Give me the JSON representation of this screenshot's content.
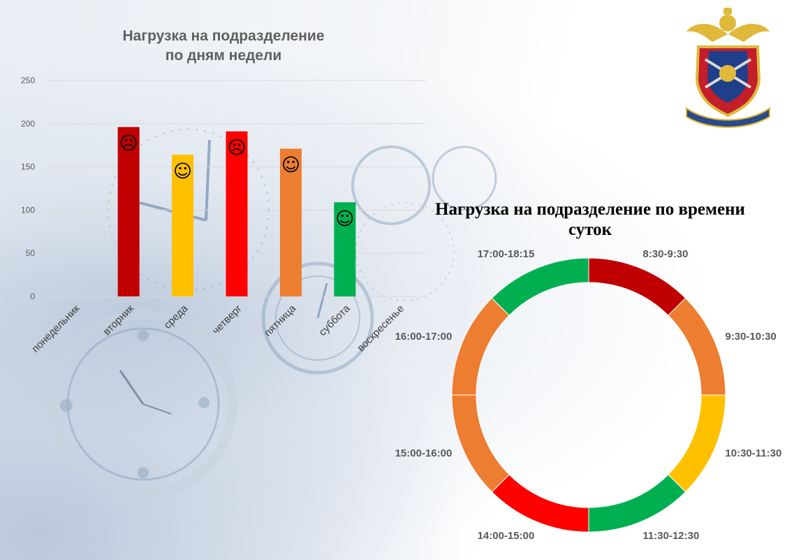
{
  "chart_data": [
    {
      "type": "bar",
      "title_lines": [
        "Нагрузка на подразделение",
        "по дням недели"
      ],
      "categories": [
        "понедельник",
        "вторник",
        "среда",
        "четверг",
        "пятница",
        "суббота",
        "воскресенье"
      ],
      "values": [
        0,
        196,
        164,
        191,
        171,
        109,
        0
      ],
      "colors": [
        "#c00000",
        "#c00000",
        "#ffc000",
        "#ff0000",
        "#ed7d31",
        "#00b050",
        "#00b050"
      ],
      "markers": [
        "",
        "☹",
        "☺",
        "☹",
        "☺",
        "☺",
        ""
      ],
      "yticks": [
        "0",
        "50",
        "100",
        "150",
        "200",
        "250"
      ],
      "ylim": [
        0,
        250
      ],
      "grid": true,
      "legend": false
    },
    {
      "type": "pie",
      "subtype": "donut",
      "title_lines": [
        "Нагрузка на подразделение по времени",
        "суток"
      ],
      "labels": [
        "8:30-9:30",
        "9:30-10:30",
        "10:30-11:30",
        "11:30-12:30",
        "14:00-15:00",
        "15:00-16:00",
        "16:00-17:00",
        "17:00-18:15"
      ],
      "values": [
        1,
        1,
        1,
        1,
        1,
        1,
        1,
        1
      ],
      "colors": [
        "#c00000",
        "#ed7d31",
        "#ffc000",
        "#00b050",
        "#ff0000",
        "#ed7d31",
        "#ed7d31",
        "#00b050"
      ],
      "legend": false
    }
  ],
  "emblem": {
    "icon": "police-emblem-icon"
  }
}
